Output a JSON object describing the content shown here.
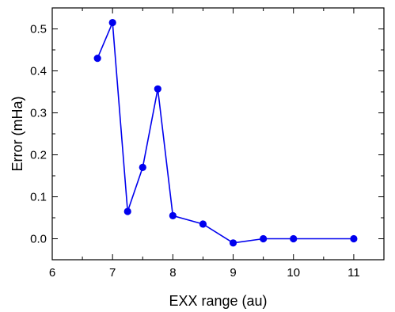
{
  "chart_data": {
    "type": "line",
    "xlabel": "EXX range (au)",
    "ylabel": "Error (mHa)",
    "xlim": [
      6,
      11.5
    ],
    "ylim": [
      -0.05,
      0.55
    ],
    "xticks": [
      6,
      7,
      8,
      9,
      10,
      11
    ],
    "xtick_labels": [
      "6",
      "7",
      "8",
      "9",
      "10",
      "11"
    ],
    "yticks": [
      0.0,
      0.1,
      0.2,
      0.3,
      0.4,
      0.5
    ],
    "ytick_labels": [
      "0.0",
      "0.1",
      "0.2",
      "0.3",
      "0.4",
      "0.5"
    ],
    "grid": false,
    "series": [
      {
        "color": "#0000ee",
        "marker": "circle",
        "x": [
          6.75,
          7.0,
          7.25,
          7.5,
          7.75,
          8.0,
          8.5,
          9.0,
          9.5,
          10.0,
          11.0
        ],
        "y": [
          0.43,
          0.515,
          0.065,
          0.17,
          0.357,
          0.055,
          0.035,
          -0.01,
          0.0,
          0.0,
          0.0
        ]
      }
    ]
  }
}
